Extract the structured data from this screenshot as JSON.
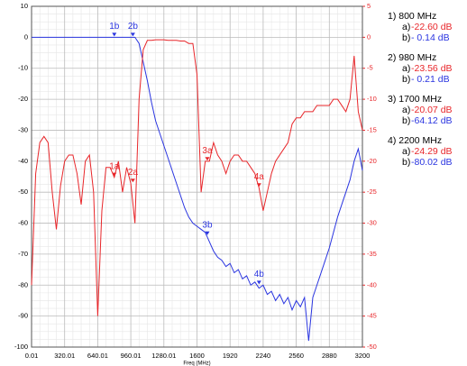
{
  "chart_data": {
    "type": "line",
    "x_label": "Freq (MHz)",
    "x": [
      0,
      40,
      80,
      120,
      160,
      200,
      240,
      280,
      320,
      360,
      400,
      440,
      480,
      520,
      560,
      600,
      640,
      680,
      720,
      760,
      800,
      840,
      880,
      920,
      960,
      1000,
      1040,
      1080,
      1120,
      1160,
      1200,
      1240,
      1280,
      1320,
      1360,
      1400,
      1440,
      1480,
      1520,
      1560,
      1600,
      1640,
      1680,
      1720,
      1760,
      1800,
      1840,
      1880,
      1920,
      1960,
      2000,
      2040,
      2080,
      2120,
      2160,
      2200,
      2240,
      2280,
      2320,
      2360,
      2400,
      2440,
      2480,
      2520,
      2560,
      2600,
      2640,
      2680,
      2720,
      2760,
      2800,
      2840,
      2880,
      2920,
      2960,
      3000,
      3040,
      3080,
      3120,
      3160,
      3200
    ],
    "xlim": [
      0,
      3200
    ],
    "xticks": [
      0.01,
      320.01,
      640.01,
      960.01,
      1280.01,
      1600,
      1920,
      2240,
      2560,
      2880,
      3200
    ],
    "ylim": [
      -100,
      10
    ],
    "yticks": [
      -100,
      -90,
      -80,
      -70,
      -60,
      -50,
      -40,
      -30,
      -20,
      -10,
      0,
      10
    ],
    "y2lim": [
      -50,
      5
    ],
    "y2ticks": [
      -50,
      -45,
      -40,
      -35,
      -30,
      -25,
      -20,
      -15,
      -10,
      -5,
      0,
      5
    ],
    "grid": true,
    "series": [
      {
        "color": "#2a35e0",
        "values": [
          0,
          0,
          0,
          0,
          0,
          0,
          0,
          0,
          0,
          0,
          0,
          0,
          0,
          0,
          0,
          0,
          0,
          0,
          0,
          0,
          0,
          0,
          0,
          0,
          0,
          0,
          -2,
          -8,
          -14,
          -21,
          -27,
          -31,
          -35,
          -39,
          -43,
          -47,
          -51,
          -55,
          -58,
          -60,
          -61,
          -62,
          -63,
          -66,
          -69,
          -71,
          -72,
          -74,
          -73,
          -76,
          -75,
          -78,
          -77,
          -80,
          -79,
          -81,
          -80,
          -83,
          -82,
          -85,
          -83,
          -86,
          -84,
          -88,
          -85,
          -87,
          -84,
          -98,
          -84,
          -80,
          -76,
          -72,
          -68,
          -63,
          -58,
          -54,
          -50,
          -46,
          -40,
          -36,
          -43
        ]
      },
      {
        "color": "#e8262a",
        "axis": "y2",
        "values": [
          -40,
          -22,
          -17,
          -16,
          -17,
          -25,
          -31,
          -24,
          -20,
          -19,
          -19,
          -22,
          -27,
          -20,
          -19,
          -25,
          -45,
          -28,
          -21,
          -21,
          -22.6,
          -20,
          -25,
          -21,
          -23.6,
          -30,
          -10,
          -2,
          -0.5,
          -0.5,
          -0.4,
          -0.4,
          -0.4,
          -0.5,
          -0.5,
          -0.5,
          -0.6,
          -0.6,
          -1,
          -1,
          -6,
          -25,
          -20,
          -20,
          -17,
          -19,
          -20,
          -22,
          -20,
          -19,
          -19,
          -20,
          -20,
          -21,
          -22,
          -24.3,
          -28,
          -25,
          -22,
          -20,
          -19,
          -18,
          -17,
          -14,
          -13,
          -13,
          -12,
          -12,
          -12,
          -11,
          -11,
          -11,
          -11,
          -10,
          -10,
          -11,
          -12,
          -10,
          -3,
          -12,
          -15
        ]
      }
    ],
    "markers": [
      {
        "label": "1b",
        "x": 800,
        "value": 0
      },
      {
        "label": "2b",
        "x": 980,
        "value": 0
      },
      {
        "label": "3b",
        "x": 1700,
        "value": -64.12
      },
      {
        "label": "4b",
        "x": 2200,
        "value": -80.02
      },
      {
        "label": "1a",
        "x": 800,
        "value": -22.6,
        "axis": "y2"
      },
      {
        "label": "2a",
        "x": 980,
        "value": -23.56,
        "axis": "y2"
      },
      {
        "label": "3a",
        "x": 1700,
        "value": -20.07,
        "axis": "y2"
      },
      {
        "label": "4a",
        "x": 2200,
        "value": -24.29,
        "axis": "y2"
      }
    ],
    "readouts": [
      {
        "header": "1) 800 MHz",
        "a_prefix": "a)",
        "a_value": "-22.60 dB",
        "b_prefix": "b)",
        "b_value": "- 0.14 dB"
      },
      {
        "header": "2) 980  MHz",
        "a_prefix": "a)",
        "a_value": "-23.56 dB",
        "b_prefix": "b)",
        "b_value": "- 0.21 dB"
      },
      {
        "header": "3) 1700 MHz",
        "a_prefix": "a)",
        "a_value": "-20.07 dB",
        "b_prefix": "b)",
        "b_value": "-64.12 dB"
      },
      {
        "header": "4) 2200 MHz",
        "a_prefix": "a)",
        "a_value": "-24.29 dB",
        "b_prefix": "b)",
        "b_value": "-80.02 dB"
      }
    ]
  }
}
